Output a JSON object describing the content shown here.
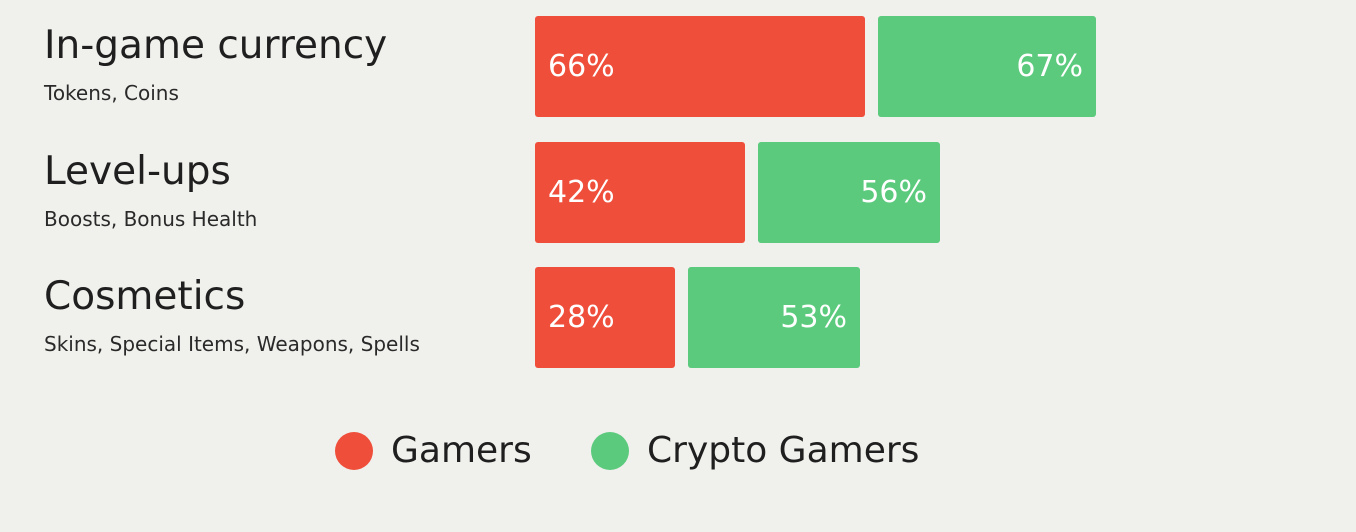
{
  "colors": {
    "gamers": "#ef4e3a",
    "crypto_gamers": "#5bca7d",
    "background": "#f0f0ec"
  },
  "legend": [
    {
      "label": "Gamers",
      "color": "#ef4e3a"
    },
    {
      "label": "Crypto Gamers",
      "color": "#5bca7d"
    }
  ],
  "chart_data": {
    "type": "bar",
    "orientation": "horizontal",
    "categories": [
      "In-game currency",
      "Level-ups",
      "Cosmetics"
    ],
    "subtitles": [
      "Tokens, Coins",
      "Boosts, Bonus Health",
      "Skins, Special Items, Weapons, Spells"
    ],
    "series": [
      {
        "name": "Gamers",
        "values": [
          66,
          42,
          28
        ],
        "labels": [
          "66%",
          "42%",
          "28%"
        ]
      },
      {
        "name": "Crypto Gamers",
        "values": [
          67,
          56,
          53
        ],
        "labels": [
          "67%",
          "56%",
          "53%"
        ]
      }
    ],
    "unit": "%",
    "legend_position": "bottom",
    "grid": false
  }
}
